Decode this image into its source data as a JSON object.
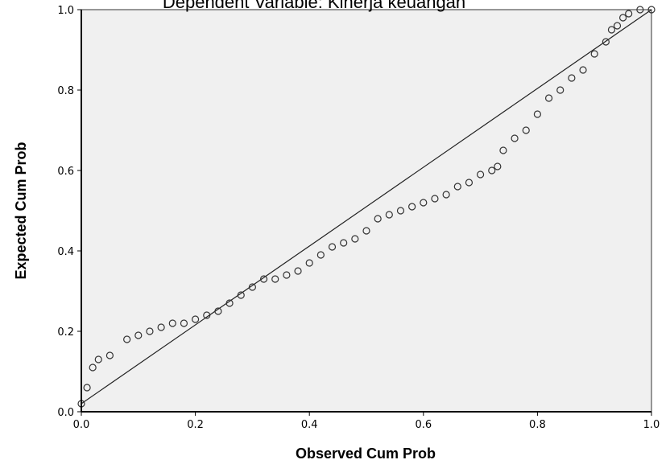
{
  "chart_data": {
    "type": "scatter",
    "title": "Dependent Variable: Kinerja keuangan",
    "xlabel": "Observed Cum Prob",
    "ylabel": "Expected Cum Prob",
    "xlim": [
      0,
      1
    ],
    "ylim": [
      0,
      1
    ],
    "x_ticks": [
      "0.0",
      "0.2",
      "0.4",
      "0.6",
      "0.8",
      "1.0"
    ],
    "y_ticks": [
      "0.0",
      "0.2",
      "0.4",
      "0.6",
      "0.8",
      "1.0"
    ],
    "grid": false,
    "reference_line": {
      "x": [
        0,
        1
      ],
      "y": [
        0.02,
        1.0
      ]
    },
    "series": [
      {
        "marker": "open-circle",
        "x": [
          0.0,
          0.01,
          0.02,
          0.03,
          0.05,
          0.08,
          0.1,
          0.12,
          0.14,
          0.16,
          0.18,
          0.2,
          0.22,
          0.24,
          0.26,
          0.28,
          0.3,
          0.32,
          0.34,
          0.36,
          0.38,
          0.4,
          0.42,
          0.44,
          0.46,
          0.48,
          0.5,
          0.52,
          0.54,
          0.56,
          0.58,
          0.6,
          0.62,
          0.64,
          0.66,
          0.68,
          0.7,
          0.72,
          0.73,
          0.74,
          0.76,
          0.78,
          0.8,
          0.82,
          0.84,
          0.86,
          0.88,
          0.9,
          0.92,
          0.93,
          0.94,
          0.95,
          0.96,
          0.98,
          1.0
        ],
        "y": [
          0.02,
          0.06,
          0.11,
          0.13,
          0.14,
          0.18,
          0.19,
          0.2,
          0.21,
          0.22,
          0.22,
          0.23,
          0.24,
          0.25,
          0.27,
          0.29,
          0.31,
          0.33,
          0.33,
          0.34,
          0.35,
          0.37,
          0.39,
          0.41,
          0.42,
          0.43,
          0.45,
          0.48,
          0.49,
          0.5,
          0.51,
          0.52,
          0.53,
          0.54,
          0.56,
          0.57,
          0.59,
          0.6,
          0.61,
          0.65,
          0.68,
          0.7,
          0.74,
          0.78,
          0.8,
          0.83,
          0.85,
          0.89,
          0.92,
          0.95,
          0.96,
          0.98,
          0.99,
          1.0,
          1.0
        ]
      }
    ]
  }
}
